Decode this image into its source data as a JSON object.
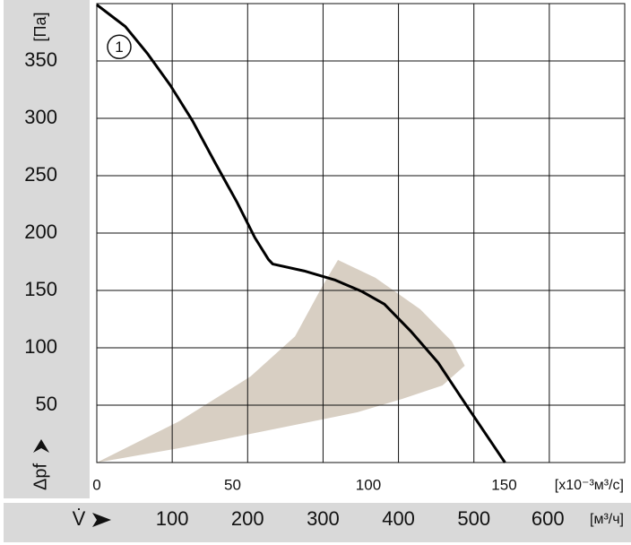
{
  "chart_data": {
    "type": "line",
    "y_unit": "[Па]",
    "y_label": "Δpf",
    "x_unit": "[x10⁻³м³/с]",
    "x2_label": "V̇",
    "x2_unit": "[м³/ч]",
    "xlim": [
      0,
      194.4
    ],
    "xticks": [
      0,
      50,
      100,
      150
    ],
    "x2lim": [
      0,
      700
    ],
    "x2ticks": [
      100,
      200,
      300,
      400,
      500,
      600
    ],
    "ylim": [
      0,
      400
    ],
    "yticks": [
      50,
      100,
      150,
      200,
      250,
      300,
      350
    ],
    "grid": true,
    "series": [
      {
        "name": "1",
        "color": "#000000",
        "x": [
          0,
          10.5,
          18.8,
          27,
          35.2,
          43.4,
          51.6,
          58.2,
          63.2,
          64.8,
          76.3,
          87.8,
          97.7,
          105.9,
          115.8,
          125.7,
          135.5,
          150.3
        ],
        "values": [
          399,
          380,
          356,
          329,
          298,
          262,
          227,
          196,
          177,
          173,
          167,
          159,
          149,
          138,
          114,
          87,
          52,
          0
        ]
      }
    ],
    "operating_range": {
      "color": "#d8cfc3",
      "x": [
        0,
        30.3,
        56.6,
        73,
        82.9,
        88.8,
        102.6,
        119.1,
        130.6,
        135.5,
        127.3,
        112.5,
        96,
        63.2,
        30.3
      ],
      "y": [
        0,
        35.9,
        75,
        110,
        153,
        176.6,
        161,
        133.6,
        106,
        84.4,
        67.2,
        55.5,
        43.8,
        28.1,
        12.5
      ]
    }
  }
}
